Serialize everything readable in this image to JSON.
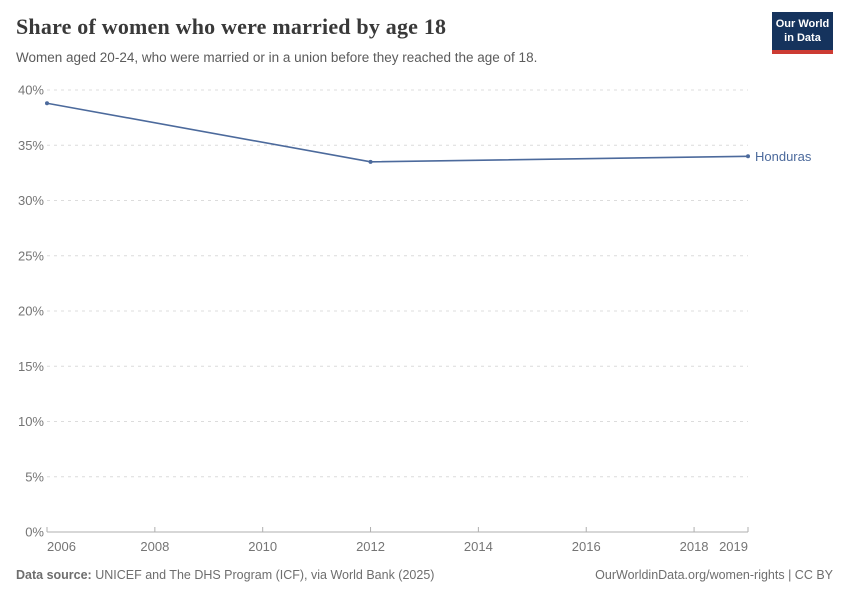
{
  "header": {
    "title": "Share of women who were married by age 18",
    "subtitle": "Women aged 20-24, who were married or in a union before they reached the age of 18.",
    "logo": {
      "line1": "Our World",
      "line2": "in Data",
      "bg_color": "#15335d",
      "bar_color": "#cc3b33"
    }
  },
  "chart_data": {
    "type": "line",
    "title": "Share of women who were married by age 18",
    "xlabel": "",
    "ylabel": "",
    "xlim": [
      2006,
      2019
    ],
    "ylim": [
      0,
      40
    ],
    "x_ticks": [
      2006,
      2008,
      2010,
      2012,
      2014,
      2016,
      2018,
      2019
    ],
    "y_ticks": [
      0,
      5,
      10,
      15,
      20,
      25,
      30,
      35,
      40
    ],
    "y_tick_suffix": "%",
    "grid": "horizontal-dashed",
    "legend_position": "end-of-line-label",
    "series": [
      {
        "name": "Honduras",
        "color": "#4c6a9c",
        "points": [
          [
            2006,
            38.8
          ],
          [
            2012,
            33.5
          ],
          [
            2019,
            34.0
          ]
        ]
      }
    ],
    "colors": {
      "grid": "#dcdcdc",
      "axis": "#afafaf",
      "tick_text": "#757575"
    }
  },
  "footer": {
    "source_label": "Data source:",
    "source_text": " UNICEF and The DHS Program (ICF), via World Bank (2025)",
    "rights": "OurWorldinData.org/women-rights | CC BY"
  }
}
